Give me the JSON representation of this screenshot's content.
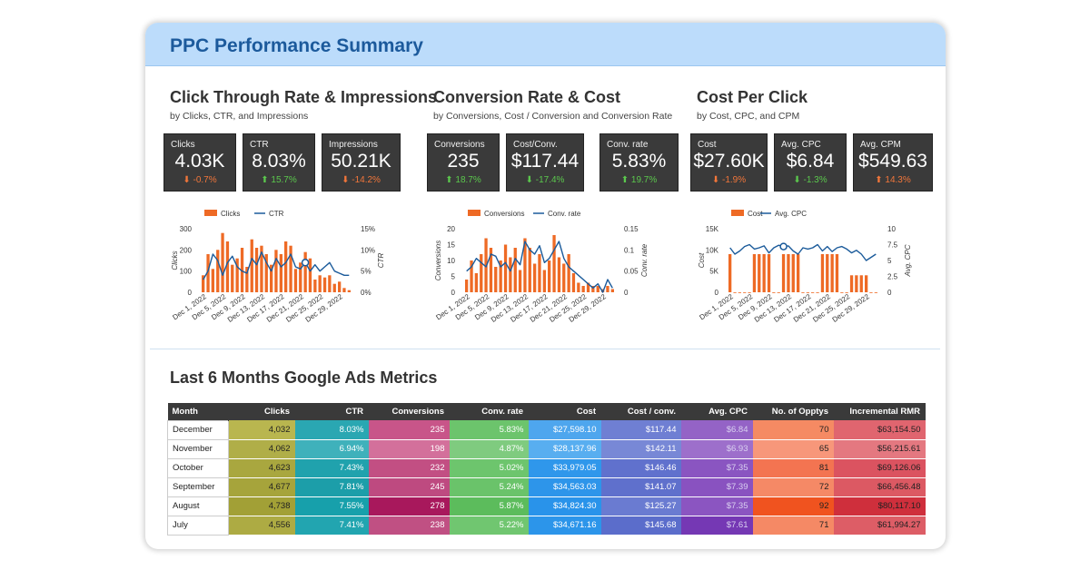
{
  "header": {
    "title": "PPC Performance Summary"
  },
  "sections": [
    {
      "title": "Click Through Rate & Impressions",
      "subtitle": "by Clicks, CTR, and Impressions",
      "kpis": [
        {
          "label": "Clicks",
          "value": "4.03K",
          "change": "-0.7%",
          "direction": "down"
        },
        {
          "label": "CTR",
          "value": "8.03%",
          "change": "15.7%",
          "direction": "up"
        },
        {
          "label": "Impressions",
          "value": "50.21K",
          "change": "-14.2%",
          "direction": "down"
        }
      ]
    },
    {
      "title": "Conversion Rate & Cost",
      "subtitle": "by Conversions, Cost / Conversion and Conversion Rate",
      "kpis": [
        {
          "label": "Conversions",
          "value": "235",
          "change": "18.7%",
          "direction": "up"
        },
        {
          "label": "Cost/Conv.",
          "value": "$117.44",
          "change": "-17.4%",
          "direction": "up"
        },
        {
          "label": "Conv. rate",
          "value": "5.83%",
          "change": "19.7%",
          "direction": "up"
        }
      ]
    },
    {
      "title": "Cost Per Click",
      "subtitle": "by Cost, CPC, and CPM",
      "kpis": [
        {
          "label": "Cost",
          "value": "$27.60K",
          "change": "-1.9%",
          "direction": "down"
        },
        {
          "label": "Avg. CPC",
          "value": "$6.84",
          "change": "-1.3%",
          "direction": "up"
        },
        {
          "label": "Avg. CPM",
          "value": "$549.63",
          "change": "14.3%",
          "direction": "down"
        }
      ]
    }
  ],
  "colors": {
    "bar": "#ee6a25",
    "line": "#1a5a9a",
    "up": "#5bc84d",
    "down": "#f2763a"
  },
  "chart_data": [
    {
      "type": "bar",
      "legend": [
        "Clicks",
        "CTR"
      ],
      "xlabel": "",
      "ylabel": "Clicks",
      "y2label": "CTR",
      "ylim": [
        0,
        300
      ],
      "y_ticks": [
        "0",
        "100",
        "200",
        "300"
      ],
      "y2lim": [
        0,
        15
      ],
      "y2_ticks": [
        "0%",
        "5%",
        "10%",
        "15%"
      ],
      "x_tick_labels": [
        "Dec 1, 2022",
        "Dec 5, 2022",
        "Dec 9, 2022",
        "Dec 13, 2022",
        "Dec 17, 2022",
        "Dec 21, 2022",
        "Dec 25, 2022",
        "Dec 29, 2022"
      ],
      "bars": [
        80,
        180,
        110,
        200,
        280,
        240,
        130,
        160,
        210,
        120,
        250,
        210,
        220,
        180,
        130,
        200,
        180,
        240,
        220,
        110,
        140,
        190,
        160,
        60,
        80,
        70,
        80,
        40,
        50,
        20,
        10
      ],
      "line": [
        3,
        5,
        9,
        7.5,
        4,
        7,
        8.5,
        6,
        5,
        4.5,
        8,
        6.5,
        9.5,
        7,
        5,
        8,
        6,
        7,
        9,
        6,
        5.5,
        7,
        5,
        6.5,
        5,
        6,
        7,
        5,
        4.5,
        4,
        4
      ],
      "marker_index": 21
    },
    {
      "type": "bar",
      "legend": [
        "Conversions",
        "Conv. rate"
      ],
      "xlabel": "",
      "ylabel": "Conversions",
      "y2label": "Conv. rate",
      "ylim": [
        0,
        20
      ],
      "y_ticks": [
        "0",
        "5",
        "10",
        "15",
        "20"
      ],
      "y2lim": [
        0,
        0.15
      ],
      "y2_ticks": [
        "0",
        "0.05",
        "0.1",
        "0.15"
      ],
      "x_tick_labels": [
        "Dec 1, 2022",
        "Dec 5, 2022",
        "Dec 9, 2022",
        "Dec 13, 2022",
        "Dec 17, 2022",
        "Dec 21, 2022",
        "Dec 25, 2022",
        "Dec 29, 2022"
      ],
      "bars": [
        4,
        10,
        6,
        12,
        17,
        14,
        8,
        10,
        15,
        11,
        14,
        7,
        17,
        14,
        9,
        12,
        7,
        10,
        18,
        11,
        9,
        12,
        6,
        3,
        2,
        3,
        2,
        2,
        1,
        2,
        1
      ],
      "line": [
        0.05,
        0.06,
        0.08,
        0.07,
        0.06,
        0.09,
        0.085,
        0.06,
        0.07,
        0.05,
        0.08,
        0.065,
        0.12,
        0.1,
        0.09,
        0.11,
        0.07,
        0.08,
        0.1,
        0.12,
        0.08,
        0.06,
        0.05,
        0.04,
        0.03,
        0.02,
        0.01,
        0.02,
        0,
        0.03,
        0.01
      ],
      "marker_index": -1
    },
    {
      "type": "bar",
      "legend": [
        "Cost",
        "Avg. CPC"
      ],
      "xlabel": "",
      "ylabel": "Cost",
      "y2label": "Avg. CPC",
      "ylim": [
        0,
        15000
      ],
      "y_ticks": [
        "0",
        "5K",
        "10K",
        "15K"
      ],
      "y2lim": [
        0,
        10
      ],
      "y2_ticks": [
        "0",
        "2.5",
        "5",
        "7.5",
        "10"
      ],
      "x_tick_labels": [
        "Dec 1, 2022",
        "Dec 5, 2022",
        "Dec 9, 2022",
        "Dec 13, 2022",
        "Dec 17, 2022",
        "Dec 21, 2022",
        "Dec 25, 2022",
        "Dec 29, 2022"
      ],
      "bars": [
        9000,
        0,
        0,
        0,
        0,
        9000,
        9000,
        9000,
        9000,
        0,
        0,
        9000,
        9000,
        9000,
        9000,
        0,
        0,
        0,
        0,
        9000,
        9000,
        9000,
        9000,
        0,
        0,
        4000,
        4000,
        4000,
        4000,
        0,
        0
      ],
      "line": [
        7,
        6,
        6.5,
        7.2,
        7.5,
        6.8,
        7,
        7.3,
        6.2,
        7,
        7.4,
        7.2,
        7.3,
        6.5,
        6,
        7,
        6.8,
        7,
        7.5,
        6.5,
        7.2,
        6.4,
        7,
        7.2,
        6.8,
        6.2,
        6.6,
        6,
        5,
        5.5,
        6
      ],
      "marker_index": 11
    }
  ],
  "table": {
    "title": "Last 6 Months Google Ads Metrics",
    "columns": [
      "Month",
      "Clicks",
      "CTR",
      "Conversions",
      "Conv. rate",
      "Cost",
      "Cost / conv.",
      "Avg. CPC",
      "No. of Opptys",
      "Incremental RMR"
    ],
    "rows": [
      [
        "December",
        "4,032",
        "8.03%",
        "235",
        "5.83%",
        "$27,598.10",
        "$117.44",
        "$6.84",
        "70",
        "$63,154.50"
      ],
      [
        "November",
        "4,062",
        "6.94%",
        "198",
        "4.87%",
        "$28,137.96",
        "$142.11",
        "$6.93",
        "65",
        "$56,215.61"
      ],
      [
        "October",
        "4,623",
        "7.43%",
        "232",
        "5.02%",
        "$33,979.05",
        "$146.46",
        "$7.35",
        "81",
        "$69,126.06"
      ],
      [
        "September",
        "4,677",
        "7.81%",
        "245",
        "5.24%",
        "$34,563.03",
        "$141.07",
        "$7.39",
        "72",
        "$66,456.48"
      ],
      [
        "August",
        "4,738",
        "7.55%",
        "278",
        "5.87%",
        "$34,824.30",
        "$125.27",
        "$7.35",
        "92",
        "$80,117.10"
      ],
      [
        "July",
        "4,556",
        "7.41%",
        "238",
        "5.22%",
        "$34,671.16",
        "$145.68",
        "$7.61",
        "71",
        "$61,994.27"
      ]
    ],
    "cell_colors": [
      [
        "#b9b64f",
        "#2aa7b2",
        "#c85589",
        "#6cc46c",
        "#4ea6ee",
        "#6f7fd3",
        "#9463c6",
        "#f58a63",
        "#e0656f"
      ],
      [
        "#b0ae48",
        "#3fb1bb",
        "#d3709b",
        "#7fcb7f",
        "#58aef0",
        "#7888d6",
        "#9d6fcb",
        "#f7977a",
        "#e47880"
      ],
      [
        "#a9a73f",
        "#20a2ad",
        "#c24f83",
        "#6dc56d",
        "#2f97eb",
        "#6071cd",
        "#8a55c1",
        "#f37451",
        "#db5360"
      ],
      [
        "#a6a43b",
        "#1c9ea9",
        "#be4a80",
        "#6ac36a",
        "#2d95ea",
        "#5f70cc",
        "#8952c0",
        "#f58966",
        "#dc5963"
      ],
      [
        "#a2a036",
        "#17a0ab",
        "#a8185c",
        "#5cbc5c",
        "#2993ea",
        "#6a7bd1",
        "#8b55c1",
        "#f0531f",
        "#cf2f3c"
      ],
      [
        "#adab43",
        "#22a5b0",
        "#c05083",
        "#70c670",
        "#2c95ea",
        "#5b6dcb",
        "#7538b4",
        "#f58965",
        "#dd5d66"
      ]
    ]
  }
}
